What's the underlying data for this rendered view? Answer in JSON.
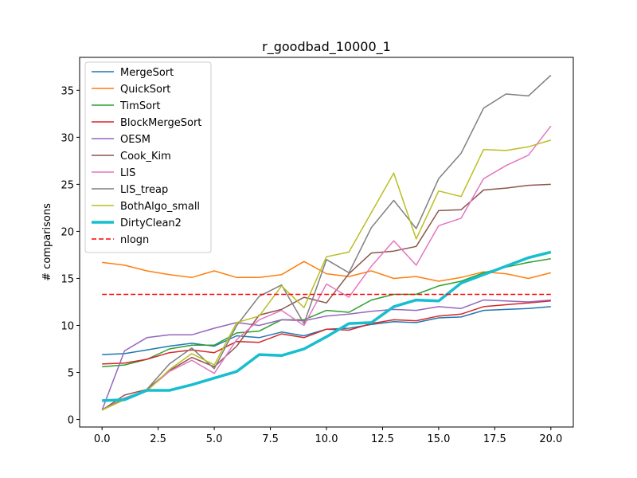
{
  "chart_data": {
    "type": "line",
    "title": "r_goodbad_10000_1",
    "xlabel": "",
    "ylabel": "# comparisons",
    "xlim": [
      -1.0,
      21.0
    ],
    "ylim": [
      -0.8,
      38.5
    ],
    "xticks": [
      0,
      2.5,
      5,
      7.5,
      10,
      12.5,
      15,
      17.5,
      20
    ],
    "xtick_labels": [
      "0.0",
      "2.5",
      "5.0",
      "7.5",
      "10.0",
      "12.5",
      "15.0",
      "17.5",
      "20.0"
    ],
    "yticks": [
      0,
      5,
      10,
      15,
      20,
      25,
      30,
      35
    ],
    "ytick_labels": [
      "0",
      "5",
      "10",
      "15",
      "20",
      "25",
      "30",
      "35"
    ],
    "grid": false,
    "legend_position": "top-left",
    "x": [
      0,
      1,
      2,
      3,
      4,
      5,
      6,
      7,
      8,
      9,
      10,
      11,
      12,
      13,
      14,
      15,
      16,
      17,
      18,
      19,
      20
    ],
    "series": [
      {
        "name": "MergeSort",
        "color": "#1f77b4",
        "style": "solid",
        "width": 1.5,
        "values": [
          6.9,
          7.0,
          7.4,
          7.8,
          8.1,
          7.8,
          8.9,
          8.7,
          9.3,
          8.9,
          9.6,
          9.7,
          10.1,
          10.4,
          10.3,
          10.8,
          10.9,
          11.6,
          11.7,
          11.8,
          12.0
        ]
      },
      {
        "name": "QuickSort",
        "color": "#ff7f0e",
        "style": "solid",
        "width": 1.5,
        "values": [
          16.7,
          16.4,
          15.8,
          15.4,
          15.1,
          15.8,
          15.1,
          15.1,
          15.4,
          16.8,
          15.5,
          15.2,
          15.8,
          15.0,
          15.2,
          14.7,
          15.1,
          15.7,
          15.5,
          15.0,
          15.6
        ]
      },
      {
        "name": "TimSort",
        "color": "#2ca02c",
        "style": "solid",
        "width": 1.5,
        "values": [
          5.6,
          5.8,
          6.4,
          7.5,
          7.9,
          7.9,
          9.2,
          9.4,
          10.6,
          10.6,
          11.6,
          11.4,
          12.7,
          13.3,
          13.3,
          14.2,
          14.7,
          15.6,
          16.2,
          16.7,
          17.1
        ]
      },
      {
        "name": "BlockMergeSort",
        "color": "#d62728",
        "style": "solid",
        "width": 1.5,
        "values": [
          5.9,
          6.0,
          6.4,
          7.1,
          7.4,
          7.1,
          8.3,
          8.2,
          9.1,
          8.7,
          9.6,
          9.5,
          10.2,
          10.6,
          10.5,
          11.0,
          11.2,
          12.0,
          12.2,
          12.4,
          12.6
        ]
      },
      {
        "name": "OESM",
        "color": "#9467bd",
        "style": "solid",
        "width": 1.5,
        "values": [
          1.0,
          7.3,
          8.7,
          9.0,
          9.0,
          9.7,
          10.3,
          10.0,
          10.6,
          10.5,
          11.0,
          11.2,
          11.5,
          11.7,
          11.6,
          12.0,
          11.8,
          12.7,
          12.6,
          12.5,
          12.7
        ]
      },
      {
        "name": "Cook_Kim",
        "color": "#8c564b",
        "style": "solid",
        "width": 1.5,
        "values": [
          1.0,
          2.6,
          3.2,
          5.2,
          6.6,
          5.6,
          7.8,
          11.1,
          11.7,
          13.0,
          12.4,
          15.5,
          17.7,
          17.9,
          18.4,
          22.2,
          22.3,
          24.4,
          24.6,
          24.9,
          25.0
        ]
      },
      {
        "name": "LIS",
        "color": "#e377c2",
        "style": "solid",
        "width": 1.5,
        "values": [
          1.0,
          2.3,
          3.1,
          5.1,
          6.3,
          4.9,
          8.5,
          10.6,
          11.6,
          10.0,
          14.4,
          13.0,
          16.3,
          19.0,
          16.4,
          20.6,
          21.4,
          25.6,
          27.0,
          28.1,
          31.2
        ]
      },
      {
        "name": "LIS_treap",
        "color": "#7f7f7f",
        "style": "solid",
        "width": 1.5,
        "values": [
          1.0,
          2.2,
          3.2,
          5.9,
          7.6,
          5.4,
          10.0,
          13.1,
          14.3,
          10.2,
          17.0,
          15.6,
          20.4,
          23.3,
          20.3,
          25.6,
          28.3,
          33.1,
          34.6,
          34.4,
          36.6
        ]
      },
      {
        "name": "BothAlgo_small",
        "color": "#bcbd22",
        "style": "solid",
        "width": 1.5,
        "values": [
          1.0,
          2.1,
          3.0,
          5.3,
          7.0,
          5.8,
          10.3,
          11.0,
          14.2,
          11.9,
          17.3,
          17.8,
          22.0,
          26.2,
          19.2,
          24.3,
          23.7,
          28.7,
          28.6,
          29.0,
          29.7
        ]
      },
      {
        "name": "DirtyClean2",
        "color": "#17becf",
        "style": "solid",
        "width": 3.5,
        "values": [
          2.0,
          2.1,
          3.1,
          3.1,
          3.7,
          4.4,
          5.1,
          6.9,
          6.8,
          7.5,
          8.8,
          10.2,
          10.3,
          12.0,
          12.7,
          12.6,
          14.5,
          15.4,
          16.3,
          17.2,
          17.8
        ]
      },
      {
        "name": "nlogn",
        "color": "#ff0000",
        "style": "dashed",
        "width": 1.5,
        "values": [
          13.3,
          13.3,
          13.3,
          13.3,
          13.3,
          13.3,
          13.3,
          13.3,
          13.3,
          13.3,
          13.3,
          13.3,
          13.3,
          13.3,
          13.3,
          13.3,
          13.3,
          13.3,
          13.3,
          13.3,
          13.3
        ]
      }
    ]
  }
}
